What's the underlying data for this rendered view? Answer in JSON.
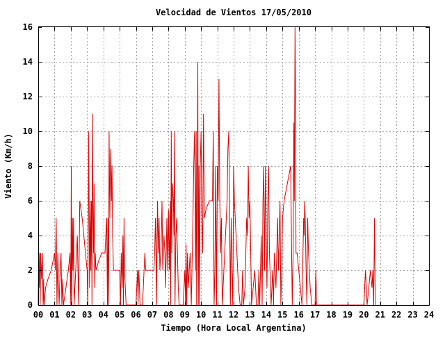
{
  "chart_data": {
    "type": "line",
    "title": "Velocidad de Vientos 17/05/2010",
    "xlabel": "Tiempo (Hora Local Argentina)",
    "ylabel": "Viento (Km/h)",
    "xlim": [
      0,
      24
    ],
    "ylim": [
      0,
      16
    ],
    "grid": true,
    "x_tick_labels": [
      "00",
      "01",
      "02",
      "03",
      "04",
      "05",
      "06",
      "07",
      "08",
      "09",
      "10",
      "11",
      "12",
      "13",
      "14",
      "15",
      "16",
      "17",
      "18",
      "19",
      "20",
      "21",
      "22",
      "23",
      "24"
    ],
    "y_tick_values": [
      0,
      2,
      4,
      6,
      8,
      10,
      12,
      14,
      16
    ],
    "series": [
      {
        "color": "#dd0000",
        "points": [
          [
            0.0,
            0
          ],
          [
            0.02,
            3
          ],
          [
            0.05,
            1
          ],
          [
            0.08,
            3
          ],
          [
            0.12,
            0
          ],
          [
            0.15,
            3
          ],
          [
            0.2,
            1.5
          ],
          [
            0.25,
            3
          ],
          [
            0.3,
            0
          ],
          [
            0.33,
            1.5
          ],
          [
            0.36,
            0
          ],
          [
            0.45,
            1
          ],
          [
            0.6,
            1.5
          ],
          [
            0.8,
            2
          ],
          [
            1.0,
            3
          ],
          [
            1.05,
            2
          ],
          [
            1.1,
            5
          ],
          [
            1.15,
            0
          ],
          [
            1.2,
            3
          ],
          [
            1.28,
            0
          ],
          [
            1.33,
            1.5
          ],
          [
            1.4,
            3
          ],
          [
            1.45,
            0
          ],
          [
            1.5,
            1.5
          ],
          [
            1.55,
            0
          ],
          [
            1.7,
            1
          ],
          [
            1.85,
            2
          ],
          [
            1.95,
            3
          ],
          [
            2.0,
            0
          ],
          [
            2.03,
            8
          ],
          [
            2.06,
            0
          ],
          [
            2.1,
            5
          ],
          [
            2.13,
            2
          ],
          [
            2.17,
            5
          ],
          [
            2.2,
            0
          ],
          [
            2.3,
            2
          ],
          [
            2.4,
            4
          ],
          [
            2.48,
            0
          ],
          [
            2.55,
            6
          ],
          [
            2.7,
            5
          ],
          [
            2.9,
            3
          ],
          [
            3.0,
            2
          ],
          [
            3.05,
            0
          ],
          [
            3.1,
            10
          ],
          [
            3.15,
            1
          ],
          [
            3.2,
            6
          ],
          [
            3.23,
            2
          ],
          [
            3.27,
            6
          ],
          [
            3.3,
            0
          ],
          [
            3.33,
            11
          ],
          [
            3.37,
            5
          ],
          [
            3.4,
            3
          ],
          [
            3.43,
            7
          ],
          [
            3.47,
            1
          ],
          [
            3.5,
            3
          ],
          [
            3.55,
            2
          ],
          [
            3.7,
            2.5
          ],
          [
            3.9,
            3
          ],
          [
            4.1,
            3
          ],
          [
            4.2,
            5
          ],
          [
            4.25,
            0
          ],
          [
            4.28,
            5
          ],
          [
            4.32,
            0
          ],
          [
            4.35,
            10
          ],
          [
            4.4,
            5
          ],
          [
            4.45,
            9
          ],
          [
            4.5,
            6
          ],
          [
            4.53,
            8
          ],
          [
            4.57,
            4
          ],
          [
            4.62,
            2
          ],
          [
            4.7,
            2
          ],
          [
            4.9,
            2
          ],
          [
            5.0,
            2
          ],
          [
            5.05,
            0
          ],
          [
            5.1,
            3
          ],
          [
            5.15,
            1
          ],
          [
            5.2,
            4
          ],
          [
            5.23,
            0
          ],
          [
            5.27,
            5
          ],
          [
            5.3,
            2
          ],
          [
            5.4,
            0
          ],
          [
            5.8,
            0
          ],
          [
            5.9,
            0
          ],
          [
            6.0,
            0
          ],
          [
            6.1,
            2
          ],
          [
            6.13,
            0
          ],
          [
            6.17,
            2
          ],
          [
            6.2,
            1.5
          ],
          [
            6.25,
            0
          ],
          [
            6.4,
            0
          ],
          [
            6.5,
            2
          ],
          [
            6.55,
            3
          ],
          [
            6.6,
            2
          ],
          [
            6.8,
            2
          ],
          [
            7.0,
            2
          ],
          [
            7.1,
            2
          ],
          [
            7.15,
            3
          ],
          [
            7.2,
            5
          ],
          [
            7.23,
            3
          ],
          [
            7.27,
            0
          ],
          [
            7.3,
            4
          ],
          [
            7.33,
            6
          ],
          [
            7.37,
            3
          ],
          [
            7.42,
            5
          ],
          [
            7.47,
            2
          ],
          [
            7.55,
            3.5
          ],
          [
            7.6,
            6
          ],
          [
            7.65,
            2
          ],
          [
            7.72,
            4
          ],
          [
            7.78,
            3
          ],
          [
            7.82,
            1
          ],
          [
            7.9,
            5
          ],
          [
            7.95,
            2
          ],
          [
            8.0,
            5.5
          ],
          [
            8.05,
            2
          ],
          [
            8.1,
            6
          ],
          [
            8.13,
            0
          ],
          [
            8.17,
            10
          ],
          [
            8.2,
            3
          ],
          [
            8.25,
            7
          ],
          [
            8.3,
            6
          ],
          [
            8.33,
            4
          ],
          [
            8.37,
            10
          ],
          [
            8.4,
            0
          ],
          [
            8.45,
            4
          ],
          [
            8.5,
            5
          ],
          [
            8.55,
            3
          ],
          [
            8.6,
            1
          ],
          [
            8.65,
            0
          ],
          [
            8.8,
            0
          ],
          [
            8.9,
            0
          ],
          [
            9.0,
            2
          ],
          [
            9.05,
            0
          ],
          [
            9.08,
            3.5
          ],
          [
            9.12,
            0
          ],
          [
            9.17,
            3
          ],
          [
            9.22,
            1
          ],
          [
            9.27,
            2
          ],
          [
            9.33,
            3
          ],
          [
            9.4,
            0
          ],
          [
            9.5,
            5
          ],
          [
            9.55,
            8
          ],
          [
            9.6,
            10
          ],
          [
            9.63,
            7
          ],
          [
            9.67,
            2
          ],
          [
            9.7,
            10
          ],
          [
            9.73,
            0
          ],
          [
            9.77,
            8
          ],
          [
            9.8,
            14
          ],
          [
            9.83,
            0
          ],
          [
            9.87,
            8
          ],
          [
            9.9,
            0
          ],
          [
            9.95,
            8
          ],
          [
            10.0,
            10
          ],
          [
            10.05,
            5
          ],
          [
            10.1,
            3
          ],
          [
            10.15,
            11
          ],
          [
            10.2,
            5
          ],
          [
            10.3,
            5.5
          ],
          [
            10.5,
            6
          ],
          [
            10.7,
            6
          ],
          [
            10.75,
            10
          ],
          [
            10.8,
            0
          ],
          [
            10.85,
            2
          ],
          [
            10.9,
            8
          ],
          [
            10.95,
            0
          ],
          [
            11.0,
            8
          ],
          [
            11.05,
            6
          ],
          [
            11.1,
            13
          ],
          [
            11.15,
            6
          ],
          [
            11.2,
            3
          ],
          [
            11.25,
            5
          ],
          [
            11.3,
            0
          ],
          [
            11.4,
            2
          ],
          [
            11.5,
            4
          ],
          [
            11.6,
            6
          ],
          [
            11.65,
            9
          ],
          [
            11.7,
            10
          ],
          [
            11.75,
            6
          ],
          [
            11.8,
            0
          ],
          [
            11.85,
            5
          ],
          [
            11.9,
            2
          ],
          [
            11.95,
            0
          ],
          [
            12.0,
            8
          ],
          [
            12.05,
            6
          ],
          [
            12.1,
            5
          ],
          [
            12.2,
            3
          ],
          [
            12.3,
            1
          ],
          [
            12.4,
            0
          ],
          [
            12.5,
            0
          ],
          [
            12.55,
            2
          ],
          [
            12.6,
            0
          ],
          [
            12.7,
            1
          ],
          [
            12.8,
            5
          ],
          [
            12.85,
            4
          ],
          [
            12.9,
            8
          ],
          [
            12.95,
            5
          ],
          [
            13.0,
            6
          ],
          [
            13.05,
            3
          ],
          [
            13.1,
            0
          ],
          [
            13.2,
            1
          ],
          [
            13.3,
            2
          ],
          [
            13.4,
            0
          ],
          [
            13.5,
            0
          ],
          [
            13.55,
            2
          ],
          [
            13.6,
            0
          ],
          [
            13.7,
            4
          ],
          [
            13.75,
            0
          ],
          [
            13.8,
            6
          ],
          [
            13.85,
            8
          ],
          [
            13.9,
            2
          ],
          [
            13.95,
            8
          ],
          [
            14.0,
            4
          ],
          [
            14.05,
            1
          ],
          [
            14.1,
            6
          ],
          [
            14.15,
            8
          ],
          [
            14.2,
            3
          ],
          [
            14.3,
            0
          ],
          [
            14.4,
            2
          ],
          [
            14.45,
            0
          ],
          [
            14.5,
            3
          ],
          [
            14.6,
            1
          ],
          [
            14.7,
            5
          ],
          [
            14.75,
            2
          ],
          [
            14.8,
            4
          ],
          [
            14.85,
            6
          ],
          [
            14.9,
            0
          ],
          [
            14.95,
            2
          ],
          [
            15.0,
            5
          ],
          [
            15.1,
            6
          ],
          [
            15.3,
            7
          ],
          [
            15.5,
            8
          ],
          [
            15.6,
            0
          ],
          [
            15.65,
            3
          ],
          [
            15.7,
            10.5
          ],
          [
            15.73,
            6
          ],
          [
            15.77,
            16
          ],
          [
            15.8,
            12
          ],
          [
            15.83,
            3
          ],
          [
            15.9,
            3
          ],
          [
            16.0,
            2
          ],
          [
            16.1,
            1
          ],
          [
            16.2,
            0
          ],
          [
            16.3,
            5
          ],
          [
            16.33,
            4
          ],
          [
            16.37,
            6
          ],
          [
            16.4,
            5
          ],
          [
            16.45,
            2
          ],
          [
            16.5,
            0
          ],
          [
            16.55,
            5
          ],
          [
            16.6,
            3
          ],
          [
            16.7,
            1
          ],
          [
            16.8,
            0
          ],
          [
            17.0,
            0
          ],
          [
            17.05,
            2
          ],
          [
            17.1,
            0
          ],
          [
            17.2,
            0
          ],
          [
            17.9,
            0
          ],
          [
            18.0,
            0
          ],
          [
            20.0,
            0
          ],
          [
            20.1,
            2
          ],
          [
            20.15,
            1
          ],
          [
            20.2,
            0
          ],
          [
            20.3,
            1
          ],
          [
            20.4,
            2
          ],
          [
            20.5,
            1
          ],
          [
            20.55,
            2
          ],
          [
            20.6,
            0
          ],
          [
            20.65,
            5
          ],
          [
            20.7,
            0
          ]
        ]
      }
    ]
  }
}
